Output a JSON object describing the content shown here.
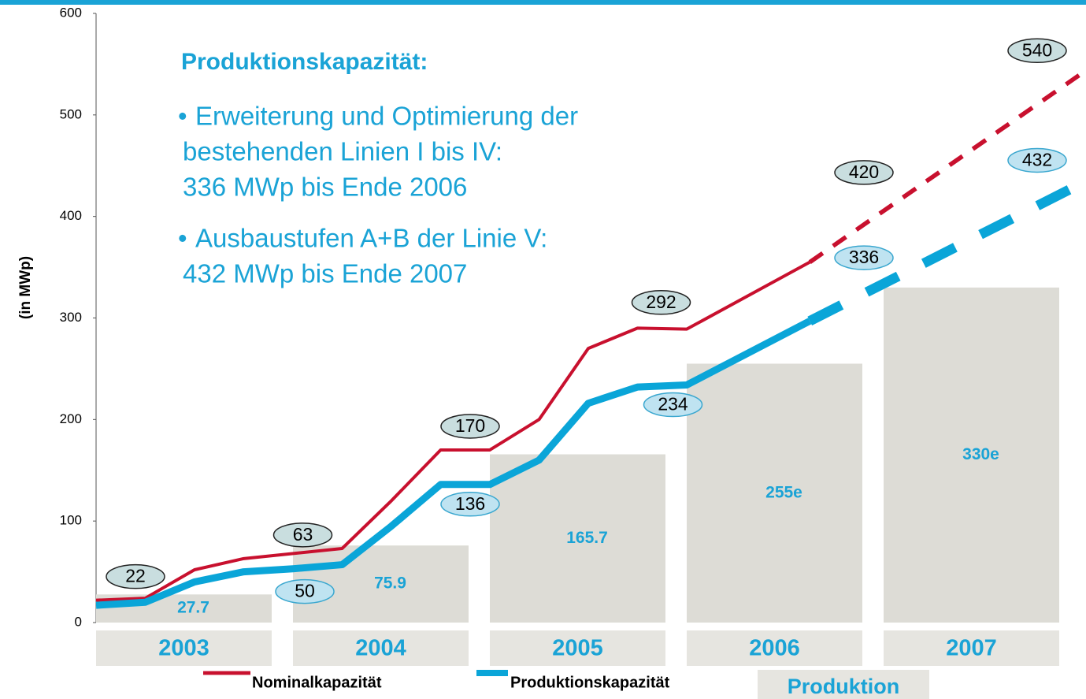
{
  "chart_data": {
    "type": "bar_line",
    "y_axis_label": "(in MWp)",
    "ylim": [
      0,
      600
    ],
    "yticks": [
      0,
      100,
      200,
      300,
      400,
      500,
      600
    ],
    "xlim": [
      2003,
      2008
    ],
    "categories": [
      "2003",
      "2004",
      "2005",
      "2006",
      "2007"
    ],
    "bar": {
      "name": "Produktion",
      "color": "#dddcd6",
      "label_color": "#1aa3d6",
      "values": [
        27.7,
        75.9,
        165.7,
        255,
        330
      ],
      "value_labels": [
        "27.7",
        "75.9",
        "165.7",
        "255e",
        "330e"
      ]
    },
    "series": [
      {
        "name": "Nominalkapazität",
        "color": "#c8102e",
        "width": 4,
        "label_fill": "#c9dedf",
        "x": [
          2003,
          2003.25,
          2003.5,
          2003.75,
          2004.25,
          2004.5,
          2004.75,
          2005,
          2005.25,
          2005.5,
          2005.75,
          2006,
          2006.625
        ],
        "values": [
          22,
          24,
          52,
          63,
          73,
          120,
          170,
          170,
          200,
          270,
          290,
          289,
          355
        ],
        "projection": {
          "x": [
            2006.625,
            2008
          ],
          "values": [
            355,
            540
          ]
        },
        "data_labels": [
          {
            "x": 2003.2,
            "value": 22,
            "position": "above"
          },
          {
            "x": 2004.05,
            "value": 63,
            "position": "above"
          },
          {
            "x": 2004.9,
            "value": 170,
            "position": "above"
          },
          {
            "x": 2005.87,
            "value": 292,
            "position": "above"
          },
          {
            "x": 2006.9,
            "value": 420,
            "position": "above"
          },
          {
            "x": 2007.78,
            "value": 540,
            "position": "above"
          }
        ]
      },
      {
        "name": "Produktionskapazität",
        "color": "#0aa5d8",
        "width": 9,
        "label_fill": "#bfe3f1",
        "x": [
          2003,
          2003.25,
          2003.5,
          2003.75,
          2004,
          2004.25,
          2004.5,
          2004.75,
          2005,
          2005.25,
          2005.5,
          2005.75,
          2006,
          2006.625
        ],
        "values": [
          17,
          20,
          40,
          50,
          53,
          57,
          95,
          136,
          136,
          160,
          216,
          232,
          234,
          297
        ],
        "projection": {
          "x": [
            2006.625,
            2008
          ],
          "values": [
            297,
            432
          ]
        },
        "data_labels": [
          {
            "x": 2004.06,
            "value": 50,
            "position": "below"
          },
          {
            "x": 2004.9,
            "value": 136,
            "position": "below"
          },
          {
            "x": 2005.93,
            "value": 234,
            "position": "below"
          },
          {
            "x": 2006.9,
            "value": 336,
            "position": "above"
          },
          {
            "x": 2007.78,
            "value": 432,
            "position": "above"
          }
        ]
      }
    ],
    "text_block": {
      "title": "Produktionskapazität:",
      "bullets": [
        [
          "Erweiterung und Optimierung der",
          "bestehenden Linien I bis IV:",
          "336 MWp  bis Ende 2006"
        ],
        [
          "Ausbaustufen A+B der Linie V:",
          "432 MWp bis Ende 2007"
        ]
      ]
    }
  }
}
